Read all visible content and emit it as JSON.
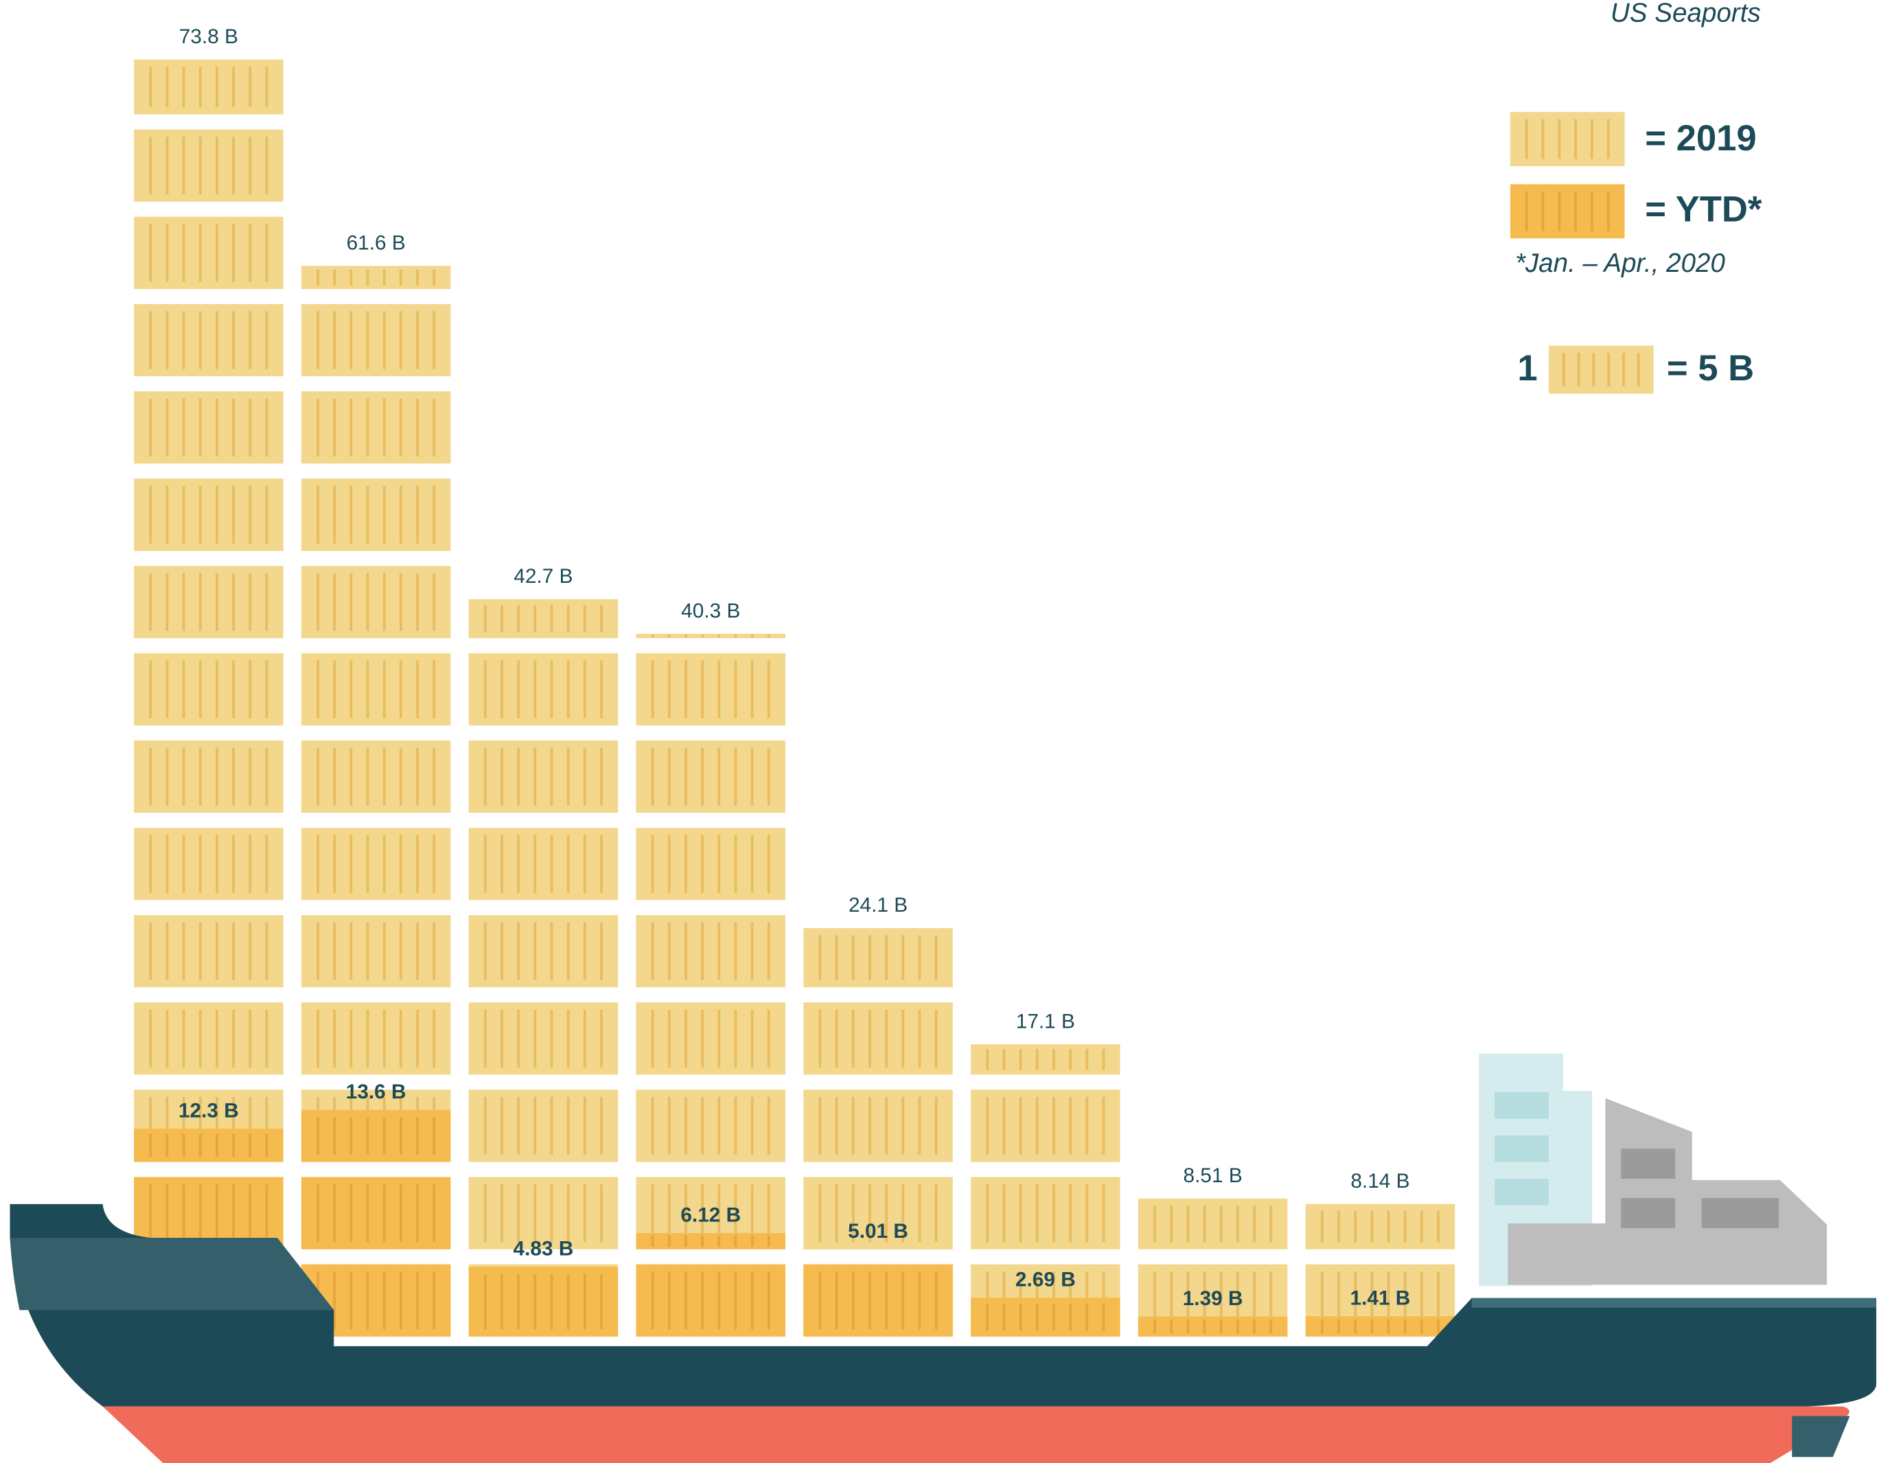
{
  "chart_data": {
    "type": "pictogram",
    "title": "US Seaports",
    "unit": {
      "count": 1,
      "value": 5,
      "label": "= 5 B"
    },
    "footnote": "*Jan. – Apr., 2020",
    "series": [
      {
        "name": "= 2019",
        "color": "#f2d78c",
        "stripe_color": "#e8bd62",
        "values": [
          73.8,
          61.6,
          42.7,
          40.3,
          24.1,
          17.1,
          8.51,
          8.14
        ],
        "value_labels": [
          "73.8 B",
          "61.6 B",
          "42.7 B",
          "40.3 B",
          "24.1 B",
          "17.1 B",
          "8.51 B",
          "8.14 B"
        ]
      },
      {
        "name": "= YTD*",
        "color": "#f5bb4e",
        "stripe_color": "#e9a53d",
        "values": [
          12.3,
          13.6,
          4.83,
          6.12,
          5.01,
          2.69,
          1.39,
          1.41
        ],
        "value_labels": [
          "12.3 B",
          "13.6 B",
          "4.83 B",
          "6.12 B",
          "5.01 B",
          "2.69 B",
          "1.39 B",
          "1.41 B"
        ]
      }
    ]
  }
}
